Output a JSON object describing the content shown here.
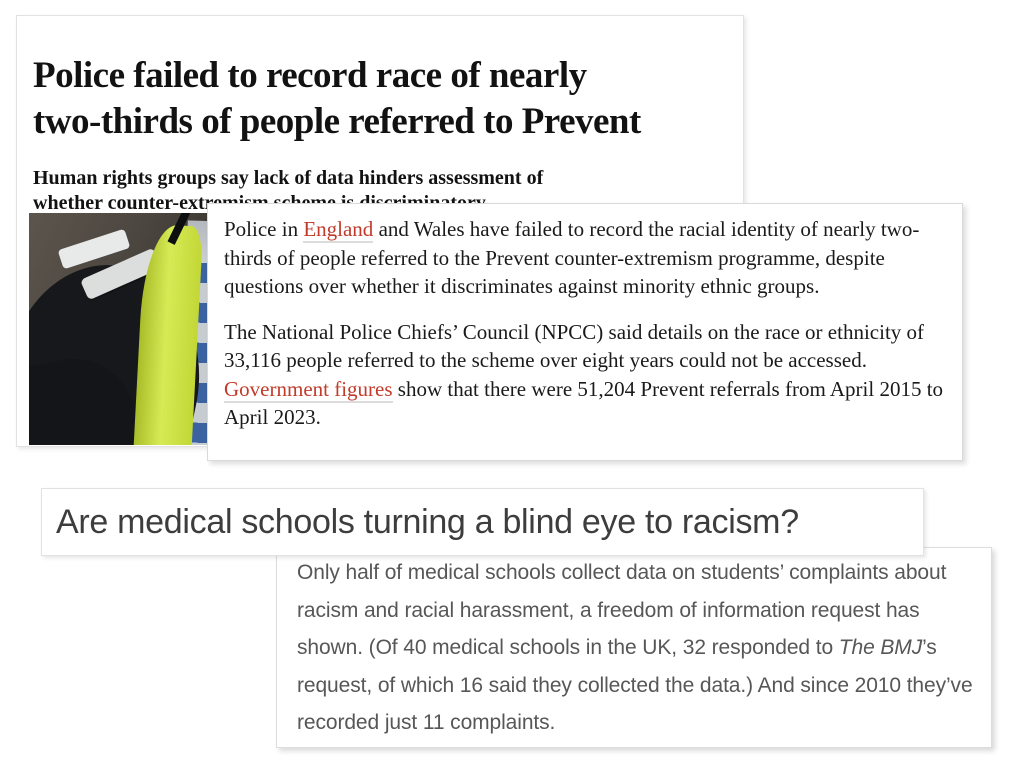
{
  "colors": {
    "link_red": "#c23b2a",
    "link_underline": "#dcdcdc",
    "guardian_text": "#121212",
    "bmj_headline_gray": "#3d3d3d",
    "bmj_body_gray": "#575757",
    "hi_vis_yellow": "#d6ea55",
    "battenburg_blue": "#3c63a1",
    "battenburg_silver": "#c7ccd1",
    "jacket_black": "#17181b"
  },
  "guardian_article": {
    "headline_lines": [
      "Police failed to record race of nearly",
      "two-thirds of people referred to Prevent"
    ],
    "standfirst_lines": [
      "Human rights groups say lack of data hinders assessment of",
      "whether counter-extremism scheme is discriminatory"
    ],
    "photo_name": "police-officer-shoulder-photo",
    "excerpt_paragraphs": [
      [
        {
          "t": "Police in "
        },
        {
          "t": "England",
          "style": "link"
        },
        {
          "t": " and Wales have failed to record the racial identity of nearly two-thirds of people referred to the Prevent counter-extremism programme, despite questions over whether it discriminates against minority ethnic groups."
        }
      ],
      [
        {
          "t": "The National Police Chiefs’ Council (NPCC) said details on the race or ethnicity of 33,116 people referred to the scheme over eight years could not be accessed. "
        },
        {
          "t": "Government figures",
          "style": "link"
        },
        {
          "t": " show that there were 51,204 Prevent referrals from April 2015 to April 2023."
        }
      ]
    ]
  },
  "bmj_article": {
    "headline": "Are medical schools turning a blind eye to racism?",
    "excerpt_runs": [
      {
        "t": "Only half of medical schools collect data on students’ complaints about racism and racial harassment, a freedom of information request has shown. (Of 40 medical schools in the UK, 32 responded to "
      },
      {
        "t": "The BMJ",
        "style": "italic"
      },
      {
        "t": "’s request, of which 16 said they collected the data.) And since 2010 they’ve recorded just 11 complaints."
      }
    ]
  }
}
